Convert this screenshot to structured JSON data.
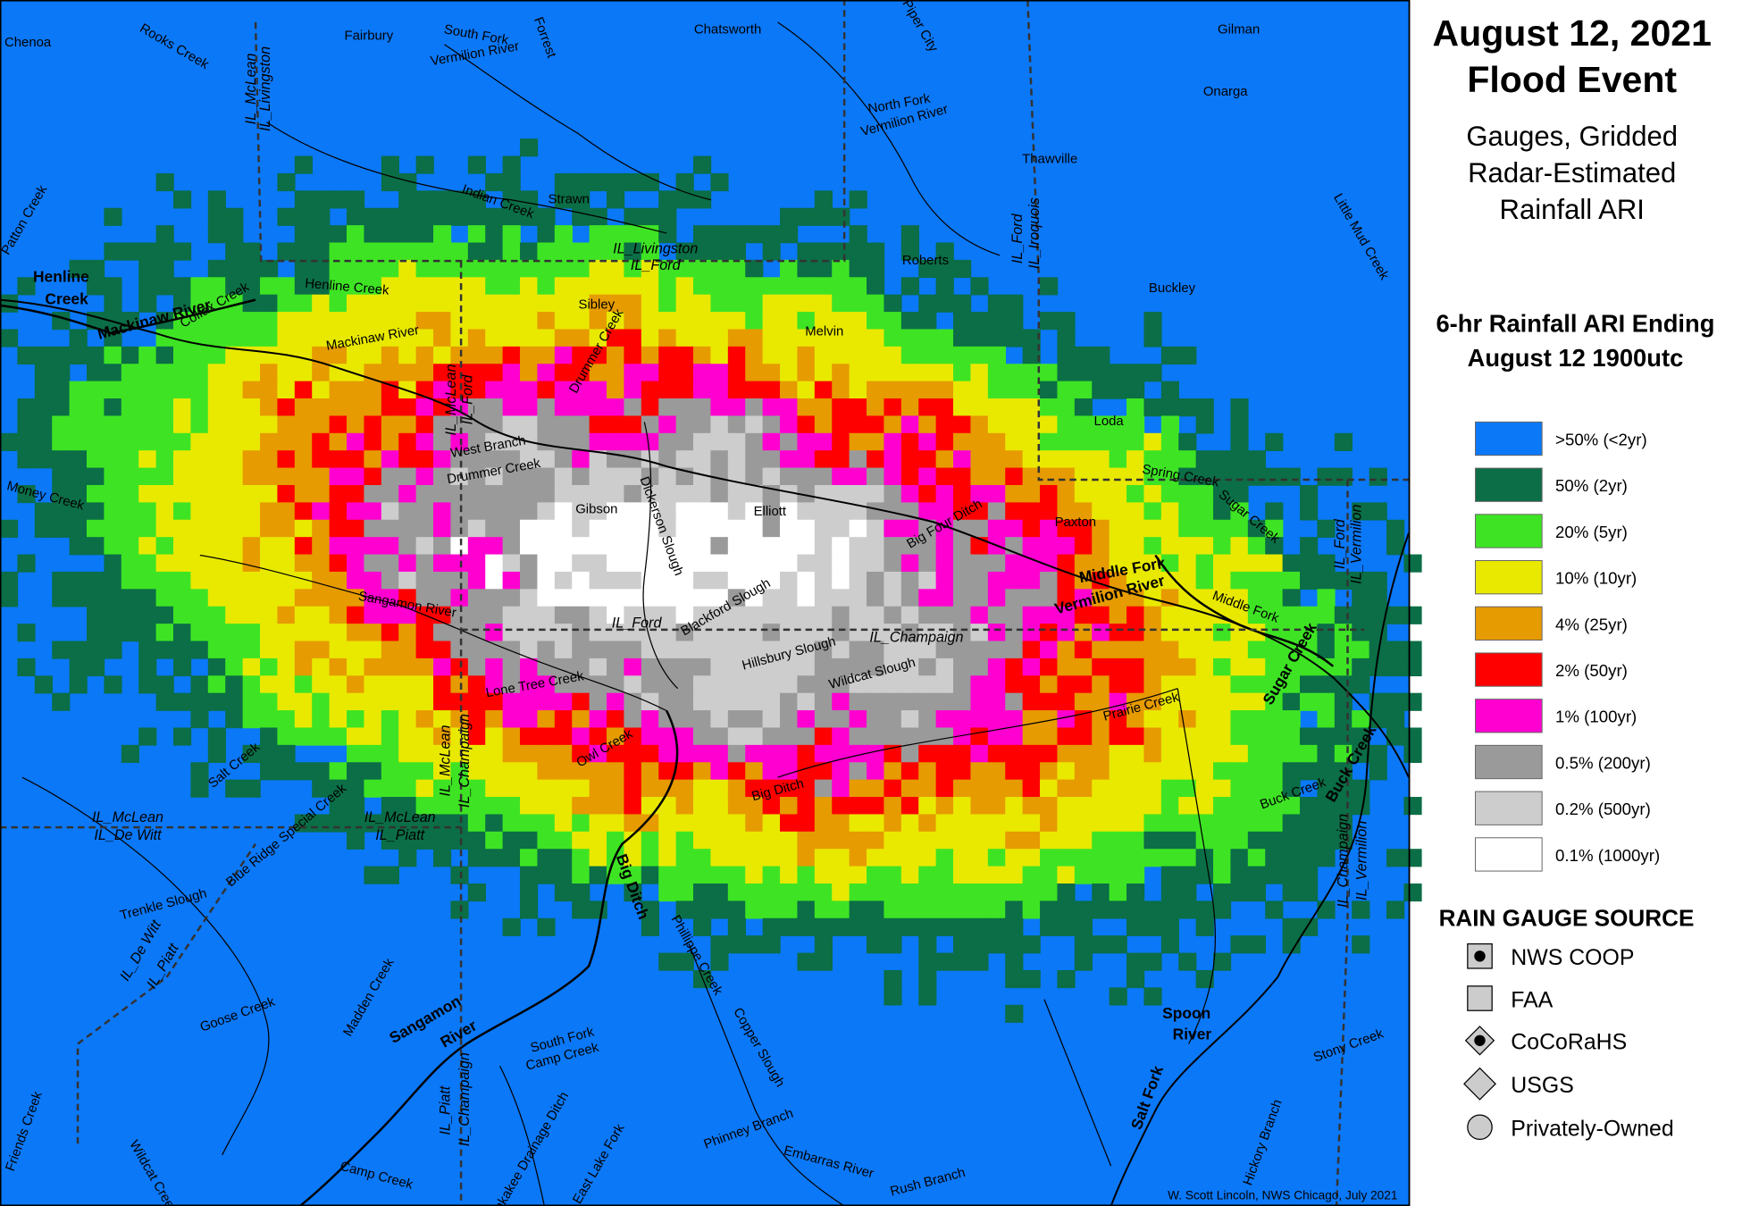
{
  "title": [
    "August 12, 2021",
    "Flood Event"
  ],
  "subtitle": [
    "Gauges, Gridded",
    "Radar-Estimated",
    "Rainfall ARI"
  ],
  "legend": {
    "title": [
      "6-hr Rainfall ARI Ending",
      "August 12 1900utc"
    ],
    "items": [
      {
        "label": ">50% (<2yr)",
        "color": "#0b78f8"
      },
      {
        "label": "50% (2yr)",
        "color": "#0b6e46"
      },
      {
        "label": "20% (5yr)",
        "color": "#3ee424"
      },
      {
        "label": "10% (10yr)",
        "color": "#e9e900"
      },
      {
        "label": "4% (25yr)",
        "color": "#e69b00"
      },
      {
        "label": "2% (50yr)",
        "color": "#ff0000"
      },
      {
        "label": "1% (100yr)",
        "color": "#ff00d0"
      },
      {
        "label": "0.5% (200yr)",
        "color": "#9a9a9a"
      },
      {
        "label": "0.2% (500yr)",
        "color": "#cdcdcd"
      },
      {
        "label": "0.1% (1000yr)",
        "color": "#ffffff"
      }
    ]
  },
  "gauge_legend": {
    "title": "RAIN GAUGE SOURCE",
    "items": [
      "NWS COOP",
      "FAA",
      "CoCoRaHS",
      "USGS",
      "Privately-Owned"
    ]
  },
  "map_labels": [
    "Chenoa",
    "Rooks Creek",
    "Fairbury",
    "South Fork",
    "Vermilion River",
    "Forrest",
    "Chatsworth",
    "Piper City",
    "Gilman",
    "Onarga",
    "North Fork",
    "Vermilion River",
    "Thawville",
    "Patton Creek",
    "Indian Creek",
    "Strawn",
    "Henline Creek",
    "Henline",
    "Creek",
    "Colfax Creek",
    "Mackinaw River",
    "Mackinaw River",
    "Roberts",
    "Sibley",
    "Melvin",
    "Buckley",
    "Little Mud Creek",
    "Drummer Creek",
    "West Branch",
    "Drummer Creek",
    "Money Creek",
    "Gibson",
    "Elliott",
    "Dickerson Slough",
    "Big Four Ditch",
    "Paxton",
    "Loda",
    "Spring Creek",
    "Sugar Creek",
    "Middle Fork",
    "Vermilion River",
    "Middle Fork",
    "Sangamon River",
    "Blackford Slough",
    "Lone Tree Creek",
    "Hillsbury Slough",
    "Wildcat Slough",
    "Prairie Creek",
    "Owl Creek",
    "Big Ditch",
    "Salt Creek",
    "Blue Ridge Special Creek",
    "Trenkle Slough",
    "Buck Creek",
    "Sugar Creek",
    "Buck Creek",
    "Big Ditch",
    "Phillippe Creek",
    "Goose Creek",
    "Madden Creek",
    "Sangamon",
    "River",
    "South Fork",
    "Camp Creek",
    "Copper Slough",
    "Spoon",
    "River",
    "Stony Creek",
    "Salt Fork",
    "Phinney Branch",
    "Kankakee Drainage Ditch",
    "East Lake Fork",
    "Embarras River",
    "Rush Branch",
    "Camp Creek",
    "Wildcat Creek",
    "Friends Creek",
    "Hickory Branch"
  ],
  "county_labels": [
    "IL_McLean",
    "IL_Livingston",
    "IL_Livingston",
    "IL_Ford",
    "IL_McLean",
    "IL_Ford",
    "IL_Ford",
    "IL_Champaign",
    "IL_McLean",
    "IL_De Witt",
    "IL_McLean",
    "IL_Piatt",
    "IL_De Witt",
    "IL_Piatt",
    "IL_McLean",
    "IL_Champaign",
    "IL_Piatt",
    "IL_Champaign",
    "IL_Ford",
    "IL_Iroquois",
    "IL_Ford",
    "IL_Vermilion",
    "IL_Champaign",
    "IL_Vermilion"
  ],
  "credit": "W. Scott Lincoln, NWS Chicago, July 2021"
}
